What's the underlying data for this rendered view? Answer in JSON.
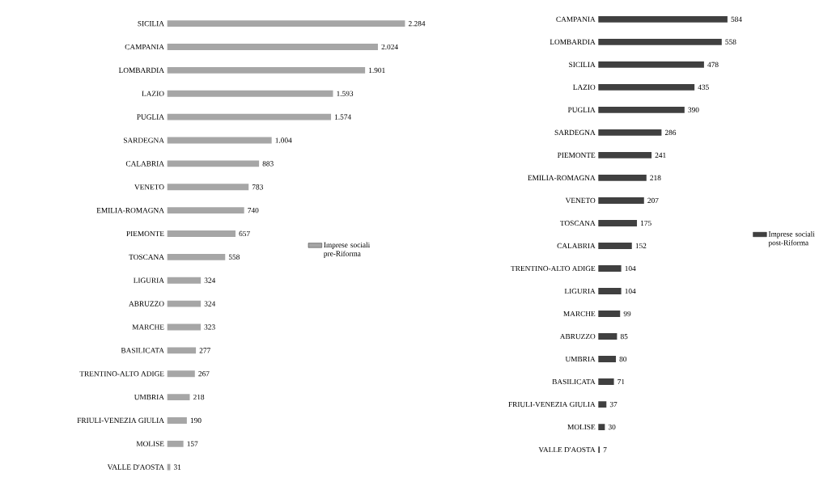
{
  "chart_data": [
    {
      "type": "bar",
      "orientation": "horizontal",
      "legend": "right",
      "categories": [
        "SICILIA",
        "CAMPANIA",
        "LOMBARDIA",
        "LAZIO",
        "PUGLIA",
        "SARDEGNA",
        "CALABRIA",
        "VENETO",
        "EMILIA-ROMAGNA",
        "PIEMONTE",
        "TOSCANA",
        "LIGURIA",
        "ABRUZZO",
        "MARCHE",
        "BASILICATA",
        "TRENTINO-ALTO ADIGE",
        "UMBRIA",
        "FRIULI-VENEZIA GIULIA",
        "MOLISE",
        "VALLE D'AOSTA"
      ],
      "series": [
        {
          "name": "Imprese sociali pre-Riforma",
          "color": "#a6a6a6",
          "values": [
            2284,
            2024,
            1901,
            1593,
            1574,
            1004,
            883,
            783,
            740,
            657,
            558,
            324,
            324,
            323,
            277,
            267,
            218,
            190,
            157,
            31
          ],
          "value_labels": [
            "2.284",
            "2.024",
            "1.901",
            "1.593",
            "1.574",
            "1.004",
            "883",
            "783",
            "740",
            "657",
            "558",
            "324",
            "324",
            "323",
            "277",
            "267",
            "218",
            "190",
            "157",
            "31"
          ]
        }
      ]
    },
    {
      "type": "bar",
      "orientation": "horizontal",
      "legend": "right",
      "categories": [
        "CAMPANIA",
        "LOMBARDIA",
        "SICILIA",
        "LAZIO",
        "PUGLIA",
        "SARDEGNA",
        "PIEMONTE",
        "EMILIA-ROMAGNA",
        "VENETO",
        "TOSCANA",
        "CALABRIA",
        "TRENTINO-ALTO ADIGE",
        "LIGURIA",
        "MARCHE",
        "ABRUZZO",
        "UMBRIA",
        "BASILICATA",
        "FRIULI-VENEZIA GIULIA",
        "MOLISE",
        "VALLE D'AOSTA"
      ],
      "series": [
        {
          "name": "Imprese sociali post-Riforma",
          "color": "#404040",
          "values": [
            584,
            558,
            478,
            435,
            390,
            286,
            241,
            218,
            207,
            175,
            152,
            104,
            104,
            99,
            85,
            80,
            71,
            37,
            30,
            7
          ],
          "value_labels": [
            "584",
            "558",
            "478",
            "435",
            "390",
            "286",
            "241",
            "218",
            "207",
            "175",
            "152",
            "104",
            "104",
            "99",
            "85",
            "80",
            "71",
            "37",
            "30",
            "7"
          ]
        }
      ]
    }
  ]
}
